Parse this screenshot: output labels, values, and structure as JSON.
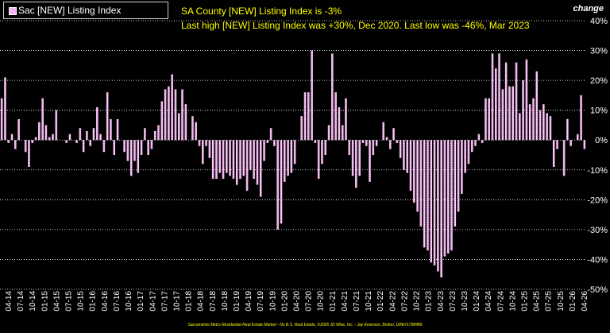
{
  "legend": {
    "label": "Sac [NEW] Listing Index"
  },
  "headline": {
    "line1": "SA County [NEW] Listing Index is -3%",
    "line2": "Last high [NEW] Listing Index was +30%, Dec 2020. Last low was -46%, Mar 2023"
  },
  "y_unit": "change",
  "footer": "Sacramento Metro Residential Real Estate Market - No B.S. Real Estate, ©2026 JD Wise, Inc. - Jay Emerson, Broker, DRE#1798489",
  "colors": {
    "bar": "#f4b6f0",
    "headline": "#ffff00",
    "grid": "#ffffff",
    "background": "#000000"
  },
  "chart_data": {
    "type": "bar",
    "series": [
      {
        "name": "Sac [NEW] Listing Index",
        "values": [
          14,
          21,
          -1,
          2,
          -3,
          7,
          0,
          -4,
          -9,
          -1,
          1,
          6,
          14,
          5,
          1,
          2,
          10,
          0,
          0,
          -1,
          2,
          0,
          -1,
          4,
          -4,
          3,
          -2,
          4,
          11,
          2,
          -4,
          16,
          7,
          -5,
          7,
          0,
          -4,
          -7,
          -12,
          -7,
          -11,
          -5,
          4,
          -5,
          -3,
          3,
          5,
          13,
          17,
          18,
          22,
          17,
          9,
          17,
          12,
          0,
          8,
          6,
          -2,
          -8,
          -2,
          -6,
          -13,
          -13,
          -11,
          -13,
          -11,
          -12,
          -13,
          -15,
          -13,
          -12,
          -17,
          -10,
          -13,
          -15,
          -19,
          -7,
          -1,
          4,
          -2,
          -30,
          -28,
          -14,
          -12,
          -11,
          -8,
          0,
          8,
          16,
          16,
          30,
          -1,
          -13,
          -8,
          -5,
          5,
          29,
          16,
          11,
          5,
          14,
          -5,
          -12,
          -16,
          -12,
          -1,
          -2,
          -14,
          -5,
          -2,
          0,
          6,
          1,
          -3,
          4,
          -1,
          -6,
          -10,
          -11,
          -17,
          -21,
          -24,
          -29,
          -36,
          -37,
          -41,
          -42,
          -44,
          -46,
          -39,
          -38,
          -37,
          -29,
          -24,
          -18,
          -11,
          -8,
          -4,
          -2,
          2,
          -1,
          14,
          14,
          29,
          24,
          29,
          17,
          26,
          18,
          18,
          26,
          9,
          20,
          27,
          12,
          14,
          23,
          10,
          12,
          9,
          8,
          -9,
          -3,
          0,
          -12,
          7,
          -2,
          0,
          2,
          15,
          -3
        ],
        "ylim": [
          -50,
          40
        ]
      }
    ],
    "y_ticks": [
      "40%",
      "30%",
      "20%",
      "10%",
      "0%",
      "-10%",
      "-20%",
      "-30%",
      "-40%",
      "-50%"
    ],
    "x_ticks": [
      "04-14",
      "07-14",
      "10-14",
      "01-15",
      "04-15",
      "07-15",
      "10-15",
      "01-16",
      "04-16",
      "07-16",
      "10-16",
      "01-17",
      "04-17",
      "07-17",
      "10-17",
      "01-18",
      "04-18",
      "07-18",
      "10-18",
      "01-19",
      "04-19",
      "07-19",
      "10-19",
      "01-20",
      "04-20",
      "07-20",
      "10-20",
      "01-21",
      "04-21",
      "07-21",
      "10-21",
      "01-22",
      "04-22",
      "07-22",
      "10-22",
      "01-23",
      "04-23",
      "07-23",
      "10-23",
      "01-24",
      "04-24",
      "07-24",
      "10-24",
      "01-25",
      "04-25",
      "07-25",
      "10-25",
      "01-26",
      "04-26"
    ],
    "grid": true
  }
}
